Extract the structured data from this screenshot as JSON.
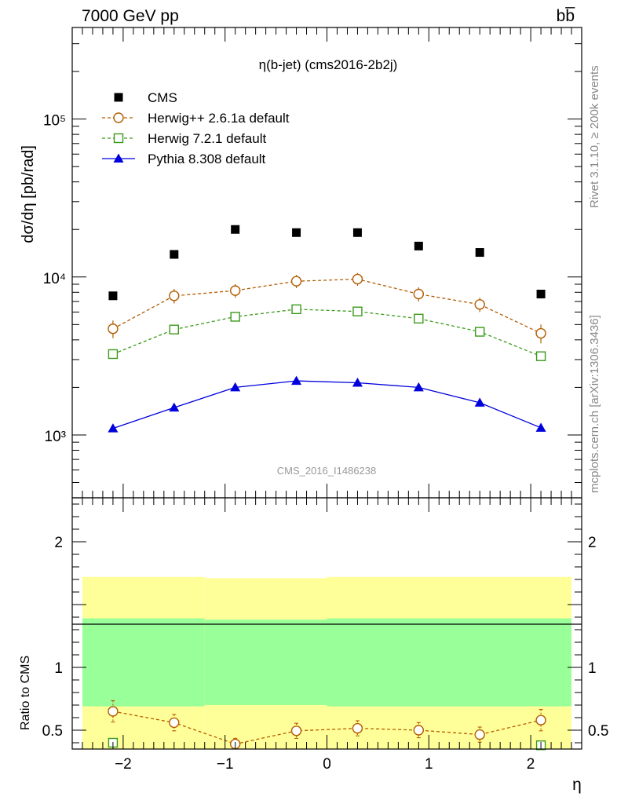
{
  "header": {
    "energy_label": "7000 GeV pp",
    "process_label": "bb̅"
  },
  "side_text": {
    "rivet": "Rivet 3.1.10, ≥ 200k events",
    "mcplots": "mcplots.cern.ch [arXiv:1306.3436]"
  },
  "colors": {
    "cms": "#000000",
    "herwigpp": "#b35c00",
    "herwig7": "#3a9a1a",
    "pythia": "#0000dd",
    "band_outer": "#ffff99",
    "band_inner": "#99ff99"
  },
  "chart_data": [
    {
      "type": "line",
      "title": "η(b-jet) (cms2016-2b2j)",
      "watermark": "CMS_2016_I1486238",
      "xlabel": "η",
      "ylabel": "dσ/dη [pb/rad]",
      "yscale": "log",
      "xlim": [
        -2.5,
        2.5
      ],
      "ylim": [
        400,
        380000
      ],
      "legend_position": "top-left",
      "x": [
        -2.1,
        -1.5,
        -0.9,
        -0.3,
        0.3,
        0.9,
        1.5,
        2.1
      ],
      "ytick_labels": [
        "10³",
        "10⁴",
        "10⁵"
      ],
      "series": [
        {
          "name": "CMS",
          "marker": "square-filled",
          "line": "none",
          "values": [
            7600,
            13900,
            20000,
            19100,
            19100,
            15700,
            14300,
            7800
          ]
        },
        {
          "name": "Herwig++ 2.6.1a default",
          "marker": "circle-open",
          "line": "dashed",
          "values": [
            4700,
            7600,
            8200,
            9400,
            9700,
            7800,
            6700,
            4400
          ],
          "err": [
            600,
            800,
            800,
            900,
            900,
            800,
            700,
            600
          ]
        },
        {
          "name": "Herwig 7.2.1 default",
          "marker": "square-open",
          "line": "dashed",
          "values": [
            3250,
            4650,
            5600,
            6250,
            6050,
            5450,
            4500,
            3150
          ]
        },
        {
          "name": "Pythia 8.308 default",
          "marker": "triangle-filled",
          "line": "solid",
          "values": [
            1100,
            1490,
            2000,
            2200,
            2140,
            2000,
            1600,
            1110
          ]
        }
      ]
    },
    {
      "type": "line",
      "ylabel": "Ratio to CMS",
      "xlabel": "η",
      "xlim": [
        -2.5,
        2.5
      ],
      "ylim": [
        0.35,
        2.35
      ],
      "x_ticks": [
        -2,
        -1,
        0,
        1,
        2
      ],
      "x_tick_labels": [
        "−2",
        "−1",
        "0",
        "1",
        "2"
      ],
      "y_ticks": [
        0.5,
        1,
        2
      ],
      "y_tick_labels": [
        "0.5",
        "1",
        "2"
      ],
      "bands": [
        {
          "x0": -2.4,
          "x1": -1.2,
          "outer": [
            0.35,
            1.72
          ],
          "inner": [
            0.69,
            1.39
          ]
        },
        {
          "x0": -1.2,
          "x1": 0.0,
          "outer": [
            0.35,
            1.71
          ],
          "inner": [
            0.7,
            1.38
          ]
        },
        {
          "x0": 0.0,
          "x1": 2.4,
          "outer": [
            0.35,
            1.72
          ],
          "inner": [
            0.69,
            1.39
          ]
        }
      ],
      "reference_line": 1.0,
      "series": [
        {
          "name": "Herwig++ 2.6.1a default",
          "values": [
            0.65,
            0.56,
            0.39,
            0.495,
            0.515,
            0.5,
            0.465,
            0.58
          ],
          "err": [
            0.085,
            0.065,
            0.045,
            0.06,
            0.06,
            0.06,
            0.06,
            0.085
          ]
        },
        {
          "name": "Herwig 7.2.1 default",
          "values": [
            0.4,
            null,
            null,
            null,
            null,
            null,
            null,
            0.38
          ]
        }
      ]
    }
  ]
}
